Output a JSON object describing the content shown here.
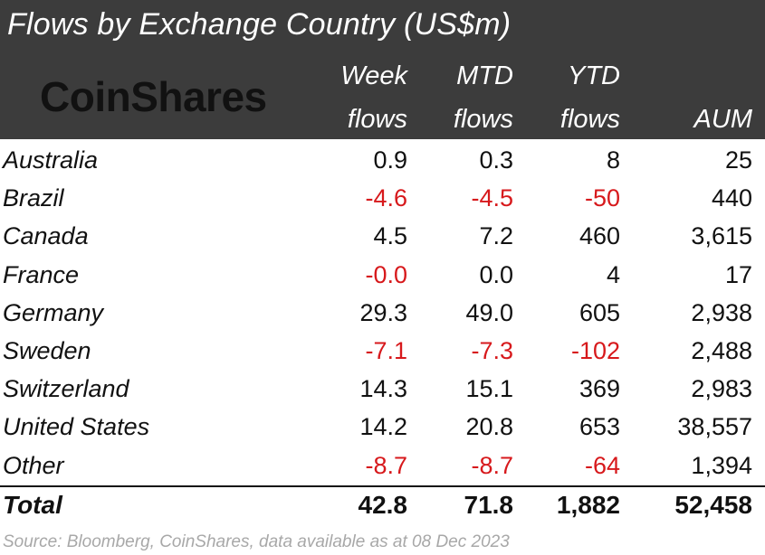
{
  "chart_data": {
    "type": "table",
    "title": "Flows by Exchange Country (US$m)",
    "logo": "CoinShares",
    "columns": [
      {
        "line1": "Week",
        "line2": "flows"
      },
      {
        "line1": "MTD",
        "line2": "flows"
      },
      {
        "line1": "YTD",
        "line2": "flows"
      },
      {
        "line1": "",
        "line2": "AUM"
      }
    ],
    "rows": [
      {
        "country": "Australia",
        "week": "0.9",
        "mtd": "0.3",
        "ytd": "8",
        "aum": "25"
      },
      {
        "country": "Brazil",
        "week": "-4.6",
        "mtd": "-4.5",
        "ytd": "-50",
        "aum": "440"
      },
      {
        "country": "Canada",
        "week": "4.5",
        "mtd": "7.2",
        "ytd": "460",
        "aum": "3,615"
      },
      {
        "country": "France",
        "week": "-0.0",
        "mtd": "0.0",
        "ytd": "4",
        "aum": "17"
      },
      {
        "country": "Germany",
        "week": "29.3",
        "mtd": "49.0",
        "ytd": "605",
        "aum": "2,938"
      },
      {
        "country": "Sweden",
        "week": "-7.1",
        "mtd": "-7.3",
        "ytd": "-102",
        "aum": "2,488"
      },
      {
        "country": "Switzerland",
        "week": "14.3",
        "mtd": "15.1",
        "ytd": "369",
        "aum": "2,983"
      },
      {
        "country": "United States",
        "week": "14.2",
        "mtd": "20.8",
        "ytd": "653",
        "aum": "38,557"
      },
      {
        "country": "Other",
        "week": "-8.7",
        "mtd": "-8.7",
        "ytd": "-64",
        "aum": "1,394"
      }
    ],
    "total": {
      "country": "Total",
      "week": "42.8",
      "mtd": "71.8",
      "ytd": "1,882",
      "aum": "52,458"
    },
    "source": "Source: Bloomberg, CoinShares, data available as at 08 Dec 2023"
  },
  "colors": {
    "header_bg": "#3c3c3c",
    "negative": "#d7191c",
    "text": "#111111",
    "source_text": "#a8a8a8"
  }
}
